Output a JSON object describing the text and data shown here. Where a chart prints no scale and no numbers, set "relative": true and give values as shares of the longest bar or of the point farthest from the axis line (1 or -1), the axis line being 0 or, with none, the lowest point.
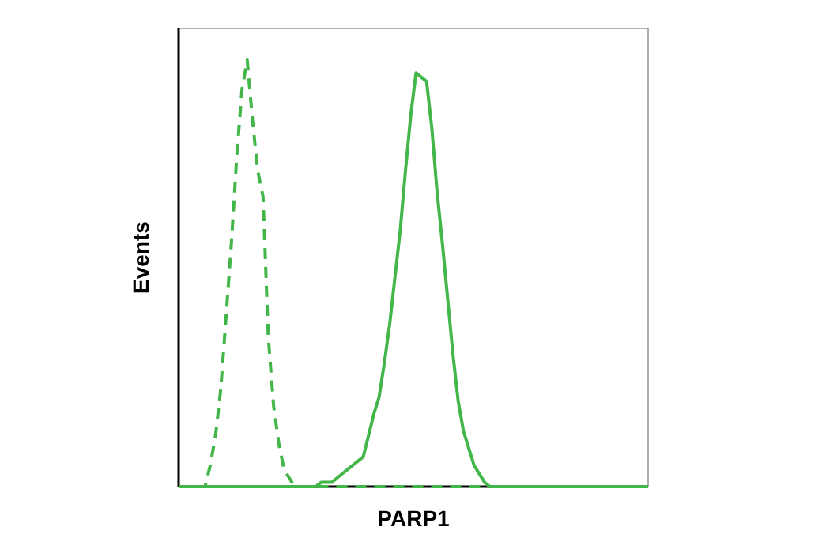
{
  "chart_data": {
    "type": "line",
    "relative": true,
    "xlabel": "PARP1",
    "ylabel": "Events",
    "marker": "none",
    "categories": [
      null,
      null,
      null,
      null,
      null,
      null,
      null,
      null,
      null,
      null,
      null,
      null,
      null,
      null,
      null,
      null,
      null,
      null,
      null,
      null,
      null,
      null,
      null,
      null,
      null,
      null,
      null,
      null,
      null,
      null,
      null,
      null,
      null,
      null,
      null,
      null,
      null,
      null,
      null,
      null,
      null,
      null,
      null,
      null,
      null,
      null,
      null,
      null,
      null,
      null,
      null,
      null,
      null,
      null,
      null,
      null,
      null,
      null,
      null,
      null,
      null,
      null,
      null,
      null,
      null,
      null,
      null,
      null,
      null,
      null,
      null,
      null,
      null,
      null,
      null,
      null,
      null,
      null,
      null,
      null,
      null,
      null,
      null,
      null,
      null,
      null,
      null,
      null,
      null,
      null
    ],
    "series": [
      {
        "color": "#43b649",
        "line_style": "dashed",
        "values": [
          0,
          0,
          0,
          0,
          0,
          0,
          0.05,
          0.12,
          0.23,
          0.4,
          0.57,
          0.77,
          0.93,
          1,
          0.86,
          0.74,
          0.68,
          0.35,
          0.19,
          0.1,
          0.04,
          0.02,
          0,
          0,
          0,
          0,
          0,
          0,
          0,
          0,
          0,
          0,
          0,
          0,
          0,
          0,
          0,
          0,
          0,
          0,
          0,
          0,
          0,
          0,
          0,
          0,
          0,
          0,
          0,
          0,
          0,
          0,
          0,
          0,
          0,
          0,
          0,
          0,
          0,
          0,
          0,
          0,
          0,
          0,
          0,
          0,
          0,
          0,
          0,
          0,
          0,
          0,
          0,
          0,
          0,
          0,
          0,
          0,
          0,
          0,
          0,
          0,
          0,
          0,
          0,
          0,
          0,
          0,
          0,
          0
        ]
      },
      {
        "color": "#43b649",
        "line_style": "solid",
        "values": [
          0,
          0,
          0,
          0,
          0,
          0,
          0,
          0,
          0,
          0,
          0,
          0,
          0,
          0,
          0,
          0,
          0,
          0,
          0,
          0,
          0,
          0,
          0,
          0,
          0,
          0,
          0,
          0.01,
          0.01,
          0.01,
          0.02,
          0.03,
          0.04,
          0.05,
          0.06,
          0.07,
          0.12,
          0.17,
          0.21,
          0.29,
          0.38,
          0.49,
          0.6,
          0.74,
          0.87,
          0.97,
          0.96,
          0.95,
          0.84,
          0.69,
          0.57,
          0.44,
          0.31,
          0.2,
          0.13,
          0.09,
          0.05,
          0.03,
          0.01,
          0,
          0,
          0,
          0,
          0,
          0,
          0,
          0,
          0,
          0,
          0,
          0,
          0,
          0,
          0,
          0,
          0,
          0,
          0,
          0,
          0,
          0,
          0,
          0,
          0,
          0,
          0,
          0,
          0,
          0,
          0
        ]
      }
    ]
  }
}
